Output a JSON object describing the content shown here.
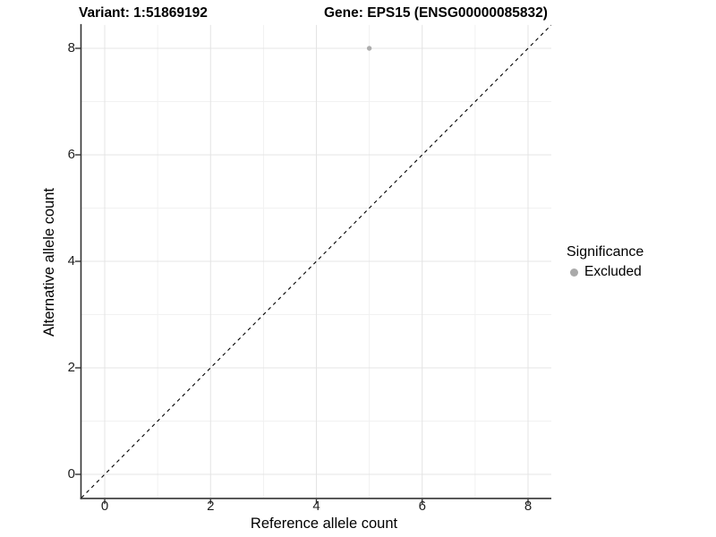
{
  "titles": {
    "left": "Variant: 1:51869192",
    "right": "Gene: EPS15 (ENSG00000085832)"
  },
  "chart_data": {
    "type": "scatter",
    "title_left": "Variant: 1:51869192",
    "title_right": "Gene: EPS15 (ENSG00000085832)",
    "xlabel": "Reference allele count",
    "ylabel": "Alternative allele count",
    "xlim": [
      -0.44,
      8.44
    ],
    "ylim": [
      -0.44,
      8.44
    ],
    "xticks": [
      0,
      2,
      4,
      6,
      8
    ],
    "yticks": [
      0,
      2,
      4,
      6,
      8
    ],
    "xminor": [
      1,
      3,
      5,
      7
    ],
    "yminor": [
      1,
      3,
      5,
      7
    ],
    "grid": "major and minor gridlines on white panel",
    "points": [
      {
        "x": 5,
        "y": 8,
        "series": "Excluded"
      }
    ],
    "reference_line": {
      "slope": 1,
      "intercept": 0,
      "style": "dashed",
      "color": "#000000"
    },
    "legend": {
      "title": "Significance",
      "position": "right",
      "items": [
        {
          "label": "Excluded",
          "color": "#a9a9a9"
        }
      ]
    }
  },
  "colors": {
    "background": "#ffffff",
    "grid_major": "#e4e4e4",
    "grid_minor": "#f1f1f1",
    "axis_line": "#333333",
    "tick_mark": "#333333",
    "point": "#adadad"
  }
}
